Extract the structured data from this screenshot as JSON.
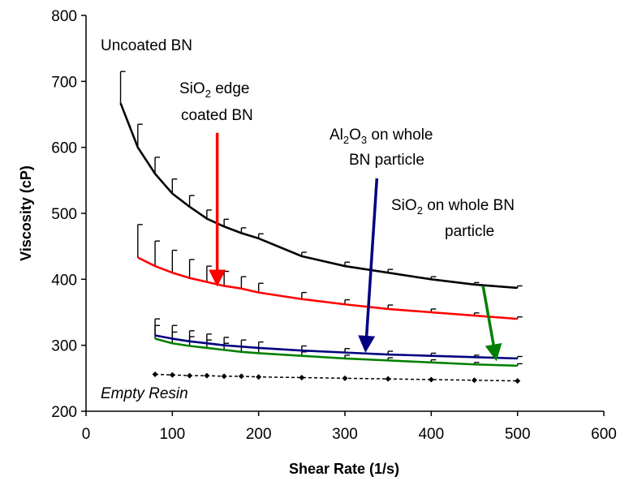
{
  "chart_data": {
    "type": "line",
    "title": "",
    "xlabel": "Shear Rate (1/s)",
    "ylabel": "Viscosity (cP)",
    "xlim": [
      0,
      600
    ],
    "ylim": [
      200,
      800
    ],
    "x_ticks": [
      "0",
      "100",
      "200",
      "300",
      "400",
      "500",
      "600"
    ],
    "y_ticks": [
      "200",
      "300",
      "400",
      "500",
      "600",
      "700",
      "800"
    ],
    "grid": false,
    "legend": "none",
    "series": [
      {
        "name": "Uncoated BN",
        "color": "#000000",
        "style": "solid",
        "x": [
          40,
          60,
          80,
          100,
          120,
          140,
          160,
          180,
          200,
          250,
          300,
          350,
          400,
          450,
          500
        ],
        "y": [
          667,
          600,
          560,
          530,
          510,
          492,
          480,
          470,
          462,
          435,
          420,
          410,
          400,
          392,
          387
        ],
        "error": [
          48,
          35,
          25,
          22,
          17,
          13,
          11,
          8,
          7,
          6,
          6,
          5,
          4,
          3,
          3
        ]
      },
      {
        "name": "SiO2 edge coated BN",
        "color": "#ff0000",
        "style": "solid",
        "x": [
          60,
          80,
          100,
          120,
          140,
          160,
          180,
          200,
          250,
          300,
          350,
          400,
          450,
          500
        ],
        "y": [
          433,
          420,
          410,
          402,
          396,
          390,
          386,
          380,
          370,
          362,
          355,
          350,
          345,
          340
        ],
        "error": [
          50,
          38,
          34,
          28,
          24,
          22,
          18,
          14,
          10,
          7,
          6,
          5,
          4,
          3
        ]
      },
      {
        "name": "Al2O3 on whole BN particle",
        "color": "#000080",
        "style": "solid",
        "x": [
          80,
          100,
          120,
          140,
          160,
          180,
          200,
          250,
          300,
          350,
          400,
          450,
          500
        ],
        "y": [
          315,
          310,
          306,
          303,
          300,
          298,
          296,
          292,
          289,
          286,
          284,
          282,
          280
        ],
        "error": [
          25,
          20,
          16,
          14,
          12,
          10,
          9,
          7,
          6,
          5,
          4,
          3,
          3
        ]
      },
      {
        "name": "SiO2 on whole BN particle",
        "color": "#008000",
        "style": "solid",
        "x": [
          80,
          100,
          120,
          140,
          160,
          180,
          200,
          250,
          300,
          350,
          400,
          450,
          500
        ],
        "y": [
          310,
          303,
          299,
          296,
          293,
          290,
          288,
          284,
          280,
          277,
          274,
          271,
          269
        ],
        "error": [
          20,
          17,
          14,
          12,
          10,
          8,
          8,
          6,
          5,
          4,
          4,
          3,
          3
        ]
      },
      {
        "name": "Empty Resin",
        "color": "#000000",
        "style": "dashed",
        "markers": true,
        "x": [
          80,
          100,
          120,
          140,
          160,
          180,
          200,
          250,
          300,
          350,
          400,
          450,
          500
        ],
        "y": [
          256,
          255,
          254,
          254,
          253,
          253,
          252,
          251,
          250,
          249,
          248,
          247,
          246
        ]
      }
    ],
    "annotations": [
      {
        "id": "uncoated",
        "lines": [
          [
            {
              "t": "Uncoated BN"
            }
          ]
        ],
        "italic": false
      },
      {
        "id": "sio2edge",
        "lines": [
          [
            {
              "t": "SiO"
            },
            {
              "t": "2",
              "sub": true
            },
            {
              "t": " edge"
            }
          ],
          [
            {
              "t": "coated BN"
            }
          ]
        ],
        "italic": false
      },
      {
        "id": "al2o3",
        "lines": [
          [
            {
              "t": "Al"
            },
            {
              "t": "2",
              "sub": true
            },
            {
              "t": "O"
            },
            {
              "t": "3",
              "sub": true
            },
            {
              "t": " on whole"
            }
          ],
          [
            {
              "t": "BN particle"
            }
          ]
        ],
        "italic": false
      },
      {
        "id": "sio2whole",
        "lines": [
          [
            {
              "t": "SiO"
            },
            {
              "t": "2",
              "sub": true
            },
            {
              "t": " on whole BN"
            }
          ],
          [
            {
              "t": "particle"
            }
          ]
        ],
        "italic": false
      },
      {
        "id": "empty",
        "lines": [
          [
            {
              "t": "Empty Resin"
            }
          ]
        ],
        "italic": true
      }
    ],
    "arrows": [
      {
        "id": "sio2edge",
        "color": "#ff0000",
        "from": [
          152,
          622
        ],
        "to": [
          152,
          393
        ]
      },
      {
        "id": "al2o3",
        "color": "#000080",
        "from": [
          337,
          553
        ],
        "to": [
          324,
          293
        ]
      },
      {
        "id": "sio2whole",
        "color": "#008000",
        "from": [
          460,
          390
        ],
        "to": [
          475,
          280
        ]
      }
    ]
  }
}
